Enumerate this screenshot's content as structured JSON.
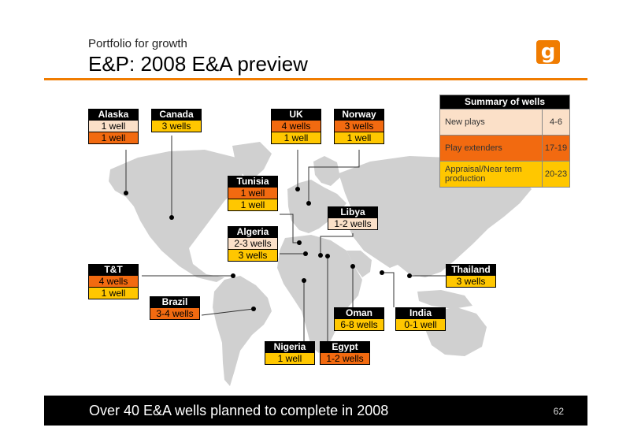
{
  "header": {
    "subtitle": "Portfolio for growth",
    "title": "E&P: 2008 E&A preview",
    "logo_letter": "g"
  },
  "colors": {
    "accent": "#f07c00",
    "new_plays": "#fbe0c8",
    "play_extenders": "#f26a10",
    "appraisal": "#ffc700"
  },
  "regions": [
    {
      "name": "Alaska",
      "cells": [
        {
          "text": "1 well",
          "type": "new"
        },
        {
          "text": "1 well",
          "type": "ext"
        }
      ]
    },
    {
      "name": "Canada",
      "cells": [
        {
          "text": "3 wells",
          "type": "app"
        }
      ]
    },
    {
      "name": "UK",
      "cells": [
        {
          "text": "4 wells",
          "type": "ext"
        },
        {
          "text": "1 well",
          "type": "app"
        }
      ]
    },
    {
      "name": "Norway",
      "cells": [
        {
          "text": "3 wells",
          "type": "ext"
        },
        {
          "text": "1 well",
          "type": "app"
        }
      ]
    },
    {
      "name": "Tunisia",
      "cells": [
        {
          "text": "1 well",
          "type": "ext"
        },
        {
          "text": "1 well",
          "type": "app"
        }
      ]
    },
    {
      "name": "Libya",
      "cells": [
        {
          "text": "1-2 wells",
          "type": "new"
        }
      ]
    },
    {
      "name": "Algeria",
      "cells": [
        {
          "text": "2-3 wells",
          "type": "new"
        },
        {
          "text": "3 wells",
          "type": "app"
        }
      ]
    },
    {
      "name": "T&T",
      "cells": [
        {
          "text": "4 wells",
          "type": "ext"
        },
        {
          "text": "1 well",
          "type": "app"
        }
      ]
    },
    {
      "name": "Brazil",
      "cells": [
        {
          "text": "3-4 wells",
          "type": "ext"
        }
      ]
    },
    {
      "name": "Thailand",
      "cells": [
        {
          "text": "3 wells",
          "type": "app"
        }
      ]
    },
    {
      "name": "Oman",
      "cells": [
        {
          "text": "6-8 wells",
          "type": "app"
        }
      ]
    },
    {
      "name": "India",
      "cells": [
        {
          "text": "0-1 well",
          "type": "app"
        }
      ]
    },
    {
      "name": "Nigeria",
      "cells": [
        {
          "text": "1 well",
          "type": "app"
        }
      ]
    },
    {
      "name": "Egypt",
      "cells": [
        {
          "text": "1-2 wells",
          "type": "ext"
        }
      ]
    }
  ],
  "summary": {
    "title": "Summary of wells",
    "rows": [
      {
        "label": "New plays",
        "value": "4-6",
        "type": "new"
      },
      {
        "label": "Play extenders",
        "value": "17-19",
        "type": "ext"
      },
      {
        "label": "Appraisal/Near term production",
        "value": "20-23",
        "type": "app"
      }
    ]
  },
  "footer": {
    "text": "Over 40 E&A wells planned to complete in 2008",
    "page": "62"
  }
}
